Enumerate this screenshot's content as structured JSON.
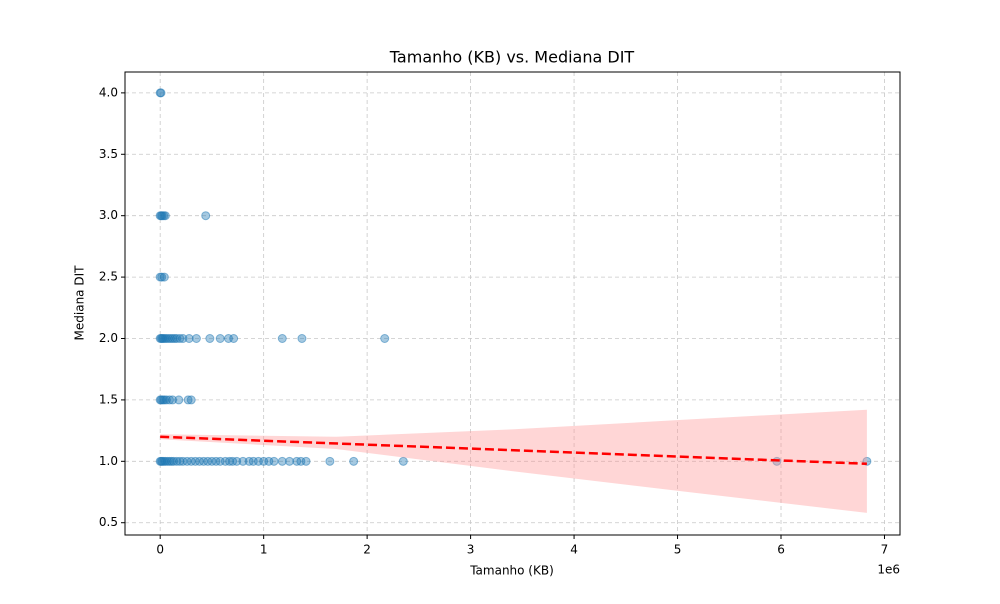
{
  "chart_data": {
    "type": "scatter",
    "title": "Tamanho (KB) vs. Mediana DIT",
    "x_label": "Tamanho (KB)",
    "y_label": "Mediana DIT",
    "x_offset_label": "1e6",
    "xlim": [
      -340000,
      7150000
    ],
    "ylim": [
      0.4,
      4.17
    ],
    "xticks": [
      0,
      {
        "value": 1000000,
        "label": "1"
      },
      {
        "value": 2000000,
        "label": "2"
      },
      {
        "value": 3000000,
        "label": "3"
      },
      {
        "value": 4000000,
        "label": "4"
      },
      {
        "value": 5000000,
        "label": "5"
      },
      {
        "value": 6000000,
        "label": "6"
      },
      {
        "value": 7000000,
        "label": "7"
      }
    ],
    "yticks": [
      0.5,
      {
        "value": 1,
        "label": "1.0"
      },
      1.5,
      {
        "value": 2,
        "label": "2.0"
      },
      2.5,
      {
        "value": 3,
        "label": "3.0"
      },
      3.5,
      {
        "value": 4,
        "label": "4.0"
      }
    ],
    "grid": true,
    "series": [
      {
        "color": "#1f77b4",
        "x": [
          0,
          8000,
          0,
          10000,
          20000,
          35000,
          50000,
          440000,
          0,
          15000,
          40000,
          0,
          10000,
          20000,
          30000,
          45000,
          60000,
          80000,
          100000,
          120000,
          140000,
          160000,
          190000,
          220000,
          280000,
          350000,
          480000,
          580000,
          660000,
          710000,
          1180000,
          1370000,
          2170000,
          0,
          10000,
          25000,
          40000,
          60000,
          90000,
          120000,
          180000,
          270000,
          300000,
          0,
          10000,
          20000,
          35000,
          50000,
          70000,
          90000,
          110000,
          130000,
          160000,
          190000,
          220000,
          260000,
          300000,
          340000,
          380000,
          420000,
          460000,
          500000,
          540000,
          580000,
          630000,
          670000,
          700000,
          740000,
          800000,
          860000,
          900000,
          950000,
          1000000,
          1050000,
          1100000,
          1180000,
          1250000,
          1320000,
          1360000,
          1410000,
          1640000,
          1870000,
          2350000,
          5960000,
          6830000
        ],
        "y": [
          4,
          4,
          3,
          3,
          3,
          3,
          3,
          3,
          2.5,
          2.5,
          2.5,
          2,
          2,
          2,
          2,
          2,
          2,
          2,
          2,
          2,
          2,
          2,
          2,
          2,
          2,
          2,
          2,
          2,
          2,
          2,
          2,
          2,
          2,
          1.5,
          1.5,
          1.5,
          1.5,
          1.5,
          1.5,
          1.5,
          1.5,
          1.5,
          1.5,
          1,
          1,
          1,
          1,
          1,
          1,
          1,
          1,
          1,
          1,
          1,
          1,
          1,
          1,
          1,
          1,
          1,
          1,
          1,
          1,
          1,
          1,
          1,
          1,
          1,
          1,
          1,
          1,
          1,
          1,
          1,
          1,
          1,
          1,
          1,
          1,
          1,
          1,
          1,
          1,
          1,
          1
        ]
      }
    ],
    "fit": {
      "color": "#ff0000",
      "x": [
        0,
        6830000
      ],
      "y": [
        1.2,
        0.98
      ]
    },
    "band": {
      "color": "#ff9999",
      "x": [
        0,
        1700000,
        3400000,
        5100000,
        6830000
      ],
      "lower": [
        1.18,
        1.1,
        0.92,
        0.75,
        0.58
      ],
      "upper": [
        1.22,
        1.2,
        1.26,
        1.34,
        1.42
      ]
    }
  }
}
